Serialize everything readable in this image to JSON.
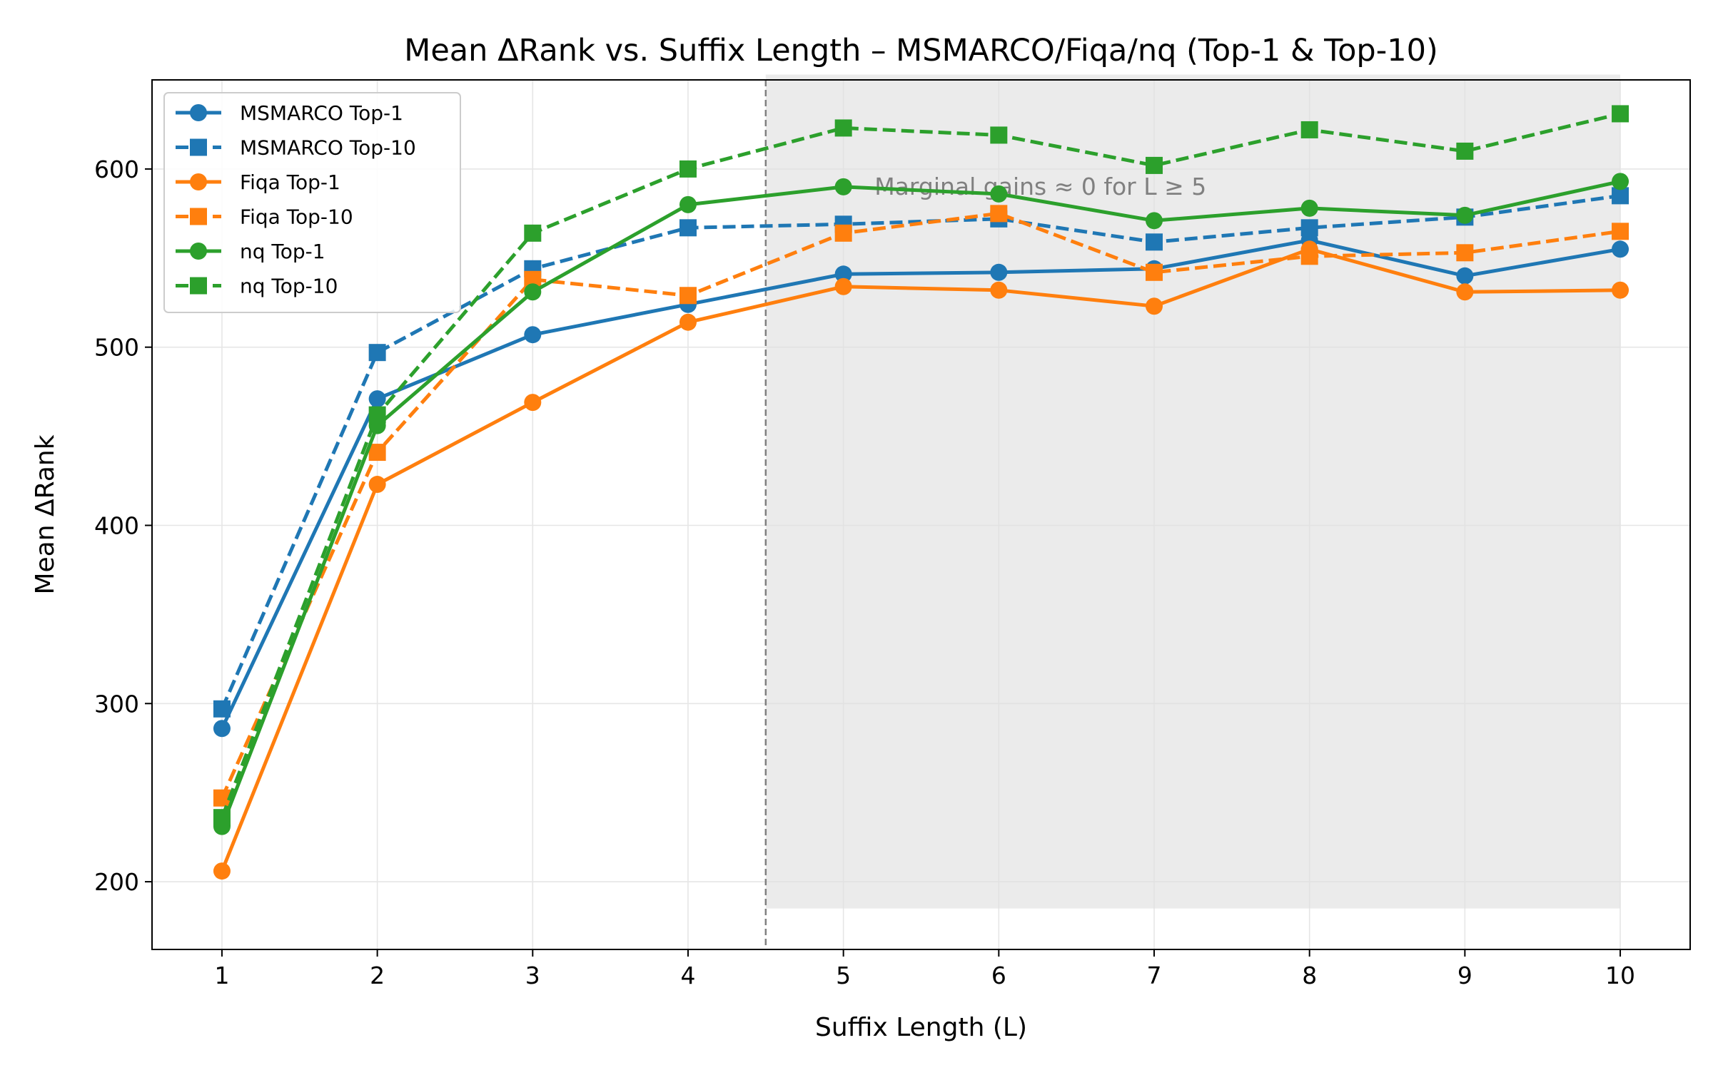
{
  "chart_data": {
    "type": "line",
    "title": "Mean ΔRank vs. Suffix Length – MSMARCO/Fiqa/nq (Top-1 & Top-10)",
    "xlabel": "Suffix Length (L)",
    "ylabel": "Mean ΔRank",
    "x": [
      1,
      2,
      3,
      4,
      5,
      6,
      7,
      8,
      9,
      10
    ],
    "xlim": [
      0.55,
      10.45
    ],
    "ylim": [
      162,
      650
    ],
    "yticks": [
      200,
      300,
      400,
      500,
      600
    ],
    "grid": true,
    "legend_position": "top-left",
    "series": [
      {
        "name": "MSMARCO Top-1",
        "color": "#1f77b4",
        "style": "solid",
        "marker": "circle",
        "values": [
          286,
          471,
          507,
          524,
          541,
          542,
          544,
          560,
          540,
          555
        ]
      },
      {
        "name": "MSMARCO Top-10",
        "color": "#1f77b4",
        "style": "dashed",
        "marker": "square",
        "values": [
          297,
          497,
          544,
          567,
          569,
          572,
          559,
          567,
          573,
          585
        ]
      },
      {
        "name": "Fiqa Top-1",
        "color": "#ff7f0e",
        "style": "solid",
        "marker": "circle",
        "values": [
          206,
          423,
          469,
          514,
          534,
          532,
          523,
          555,
          531,
          532
        ]
      },
      {
        "name": "Fiqa Top-10",
        "color": "#ff7f0e",
        "style": "dashed",
        "marker": "square",
        "values": [
          247,
          441,
          538,
          529,
          564,
          575,
          542,
          551,
          553,
          565
        ]
      },
      {
        "name": "nq Top-1",
        "color": "#2ca02c",
        "style": "solid",
        "marker": "circle",
        "values": [
          231,
          456,
          531,
          580,
          590,
          586,
          571,
          578,
          574,
          593
        ]
      },
      {
        "name": "nq Top-10",
        "color": "#2ca02c",
        "style": "dashed",
        "marker": "square",
        "values": [
          236,
          462,
          564,
          600,
          623,
          619,
          602,
          622,
          610,
          631
        ]
      }
    ],
    "vline": {
      "x": 4.5,
      "style": "dashed",
      "color": "#808080"
    },
    "shaded_region": {
      "x": [
        4.5,
        10
      ],
      "y": [
        185,
        653
      ],
      "color": "#e0e0e0"
    },
    "annotation": {
      "text": "Marginal gains ≈ 0 for L ≥ 5",
      "x": 5.2,
      "y": 590
    }
  }
}
